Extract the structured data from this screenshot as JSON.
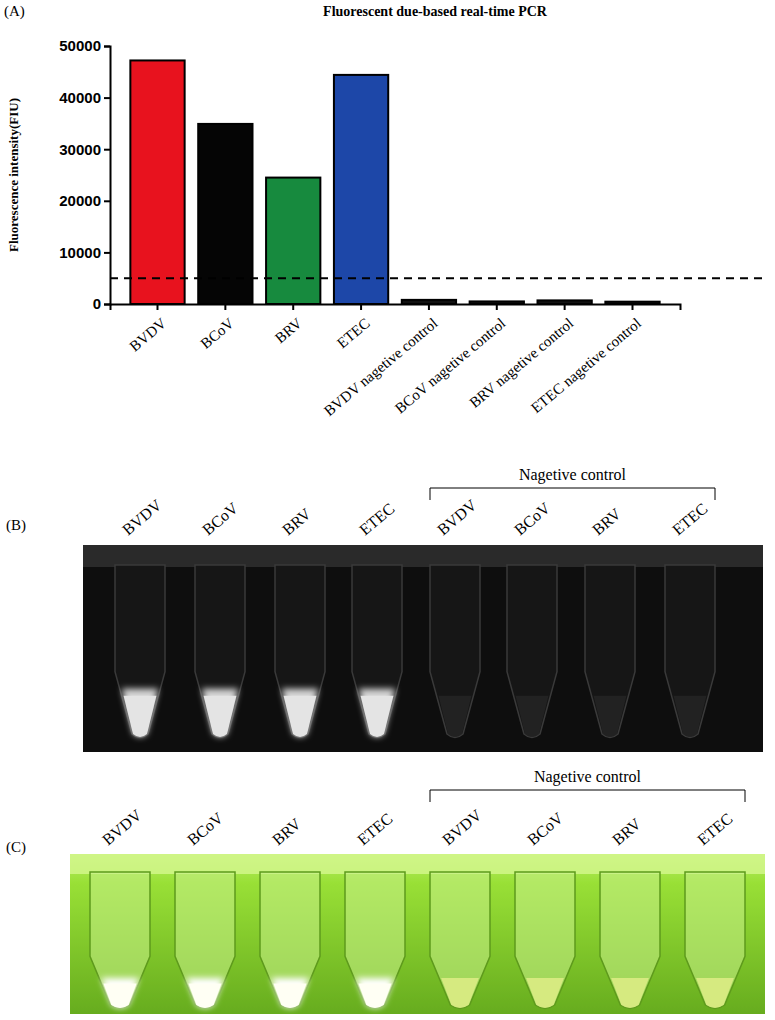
{
  "chart_data": {
    "type": "bar",
    "panel": "(A)",
    "title": "Fluorescent due-based real-time PCR",
    "y_label": "Fluorescence intensity(FIU)",
    "categories": [
      "BVDV",
      "BCoV",
      "BRV",
      "ETEC",
      "BVDV nagetive control",
      "BCoV nagetive control",
      "BRV nagetive control",
      "ETEC nagetive control"
    ],
    "values": [
      47200,
      34900,
      24500,
      44400,
      800,
      500,
      700,
      450
    ],
    "colors": [
      "#e8121e",
      "#050505",
      "#178a3e",
      "#1d47a8",
      "#111111",
      "#111111",
      "#111111",
      "#111111"
    ],
    "threshold": 5000,
    "ylim": [
      0,
      50000
    ],
    "yticks": [
      0,
      10000,
      20000,
      30000,
      40000,
      50000
    ]
  },
  "photos": [
    {
      "panel": "(B)",
      "group_label": "Nagetive control",
      "color": "#0e0e0e",
      "lanes": [
        {
          "label": "BVDV",
          "positive": true
        },
        {
          "label": "BCoV",
          "positive": true
        },
        {
          "label": "BRV",
          "positive": true
        },
        {
          "label": "ETEC",
          "positive": true
        },
        {
          "label": "BVDV",
          "positive": false
        },
        {
          "label": "BCoV",
          "positive": false
        },
        {
          "label": "BRV",
          "positive": false
        },
        {
          "label": "ETEC",
          "positive": false
        }
      ]
    },
    {
      "panel": "(C)",
      "group_label": "Nagetive control",
      "color": "#86d62a",
      "lanes": [
        {
          "label": "BVDV",
          "positive": true
        },
        {
          "label": "BCoV",
          "positive": true
        },
        {
          "label": "BRV",
          "positive": true
        },
        {
          "label": "ETEC",
          "positive": true
        },
        {
          "label": "BVDV",
          "positive": false
        },
        {
          "label": "BCoV",
          "positive": false
        },
        {
          "label": "BRV",
          "positive": false
        },
        {
          "label": "ETEC",
          "positive": false
        }
      ]
    }
  ]
}
